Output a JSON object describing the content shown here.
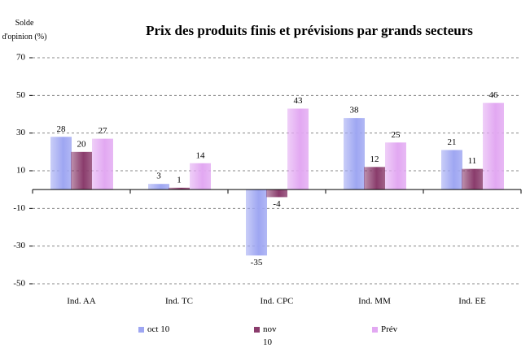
{
  "chart_data": {
    "type": "bar",
    "title": "Prix des produits finis et prévisions par grands secteurs",
    "y_label": "Solde d'opinion (%)",
    "categories": [
      "Ind. AA",
      "Ind. TC",
      "Ind. CPC",
      "Ind. MM",
      "Ind. EE"
    ],
    "series": [
      {
        "name": "oct 10",
        "color": "#9ea6f2",
        "values": [
          28,
          3,
          -35,
          38,
          21
        ]
      },
      {
        "name": "nov 10",
        "color": "#8a3c6c",
        "values": [
          20,
          1,
          -4,
          12,
          11
        ]
      },
      {
        "name": "Prév",
        "color": "#e2a8f2",
        "values": [
          27,
          14,
          43,
          25,
          46
        ]
      }
    ],
    "ylim": [
      -50,
      70
    ],
    "yticks": [
      -50,
      -30,
      -10,
      10,
      30,
      50,
      70
    ],
    "grid": true,
    "legend": "bottom"
  }
}
